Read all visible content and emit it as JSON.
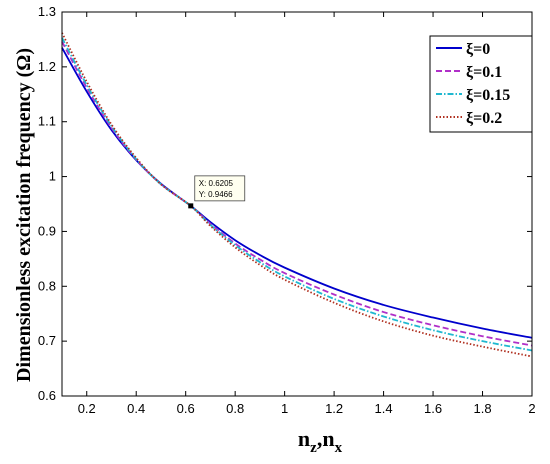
{
  "chart_data": {
    "type": "line",
    "title": "",
    "xlabel": "n",
    "xlabel_sub1": "z",
    "xlabel_sep": ",n",
    "xlabel_sub2": "x",
    "ylabel": "Dimensionless excitation frequency (Ω)",
    "xlim": [
      0.1,
      2.0
    ],
    "ylim": [
      0.6,
      1.3
    ],
    "xticks": [
      0.2,
      0.4,
      0.6,
      0.8,
      1,
      1.2,
      1.4,
      1.6,
      1.8,
      2
    ],
    "xtick_labels": [
      "0.2",
      "0.4",
      "0.6",
      "0.8",
      "1",
      "1.2",
      "1.4",
      "1.6",
      "1.8",
      "2"
    ],
    "yticks": [
      0.6,
      0.7,
      0.8,
      0.9,
      1.0,
      1.1,
      1.2,
      1.3
    ],
    "ytick_labels": [
      "0.6",
      "0.7",
      "0.8",
      "0.9",
      "1",
      "1.1",
      "1.2",
      "1.3"
    ],
    "grid": false,
    "legend_position": "top-right",
    "x": [
      0.1,
      0.2,
      0.3,
      0.4,
      0.5,
      0.6205,
      0.7,
      0.8,
      0.9,
      1.0,
      1.2,
      1.4,
      1.6,
      1.8,
      2.0
    ],
    "series": [
      {
        "name": "ξ=0",
        "color": "#0000cc",
        "dash": "solid",
        "values": [
          1.235,
          1.155,
          1.085,
          1.03,
          0.987,
          0.9466,
          0.917,
          0.884,
          0.857,
          0.834,
          0.796,
          0.766,
          0.743,
          0.723,
          0.706
        ]
      },
      {
        "name": "ξ=0.1",
        "color": "#b030c8",
        "dash": "dashed",
        "values": [
          1.246,
          1.162,
          1.089,
          1.031,
          0.986,
          0.9466,
          0.914,
          0.878,
          0.849,
          0.824,
          0.785,
          0.753,
          0.729,
          0.709,
          0.692
        ]
      },
      {
        "name": "ξ=0.15",
        "color": "#20b8d0",
        "dash": "dashdot",
        "values": [
          1.253,
          1.167,
          1.092,
          1.032,
          0.986,
          0.9466,
          0.912,
          0.875,
          0.844,
          0.818,
          0.777,
          0.745,
          0.72,
          0.7,
          0.683
        ]
      },
      {
        "name": "ξ=0.2",
        "color": "#b03020",
        "dash": "dotted",
        "values": [
          1.262,
          1.173,
          1.095,
          1.034,
          0.986,
          0.9466,
          0.91,
          0.871,
          0.839,
          0.812,
          0.77,
          0.736,
          0.71,
          0.69,
          0.672
        ]
      }
    ],
    "datatip": {
      "x": 0.6205,
      "y": 0.9466,
      "x_text": "X: 0.6205",
      "y_text": "Y: 0.9466"
    }
  }
}
